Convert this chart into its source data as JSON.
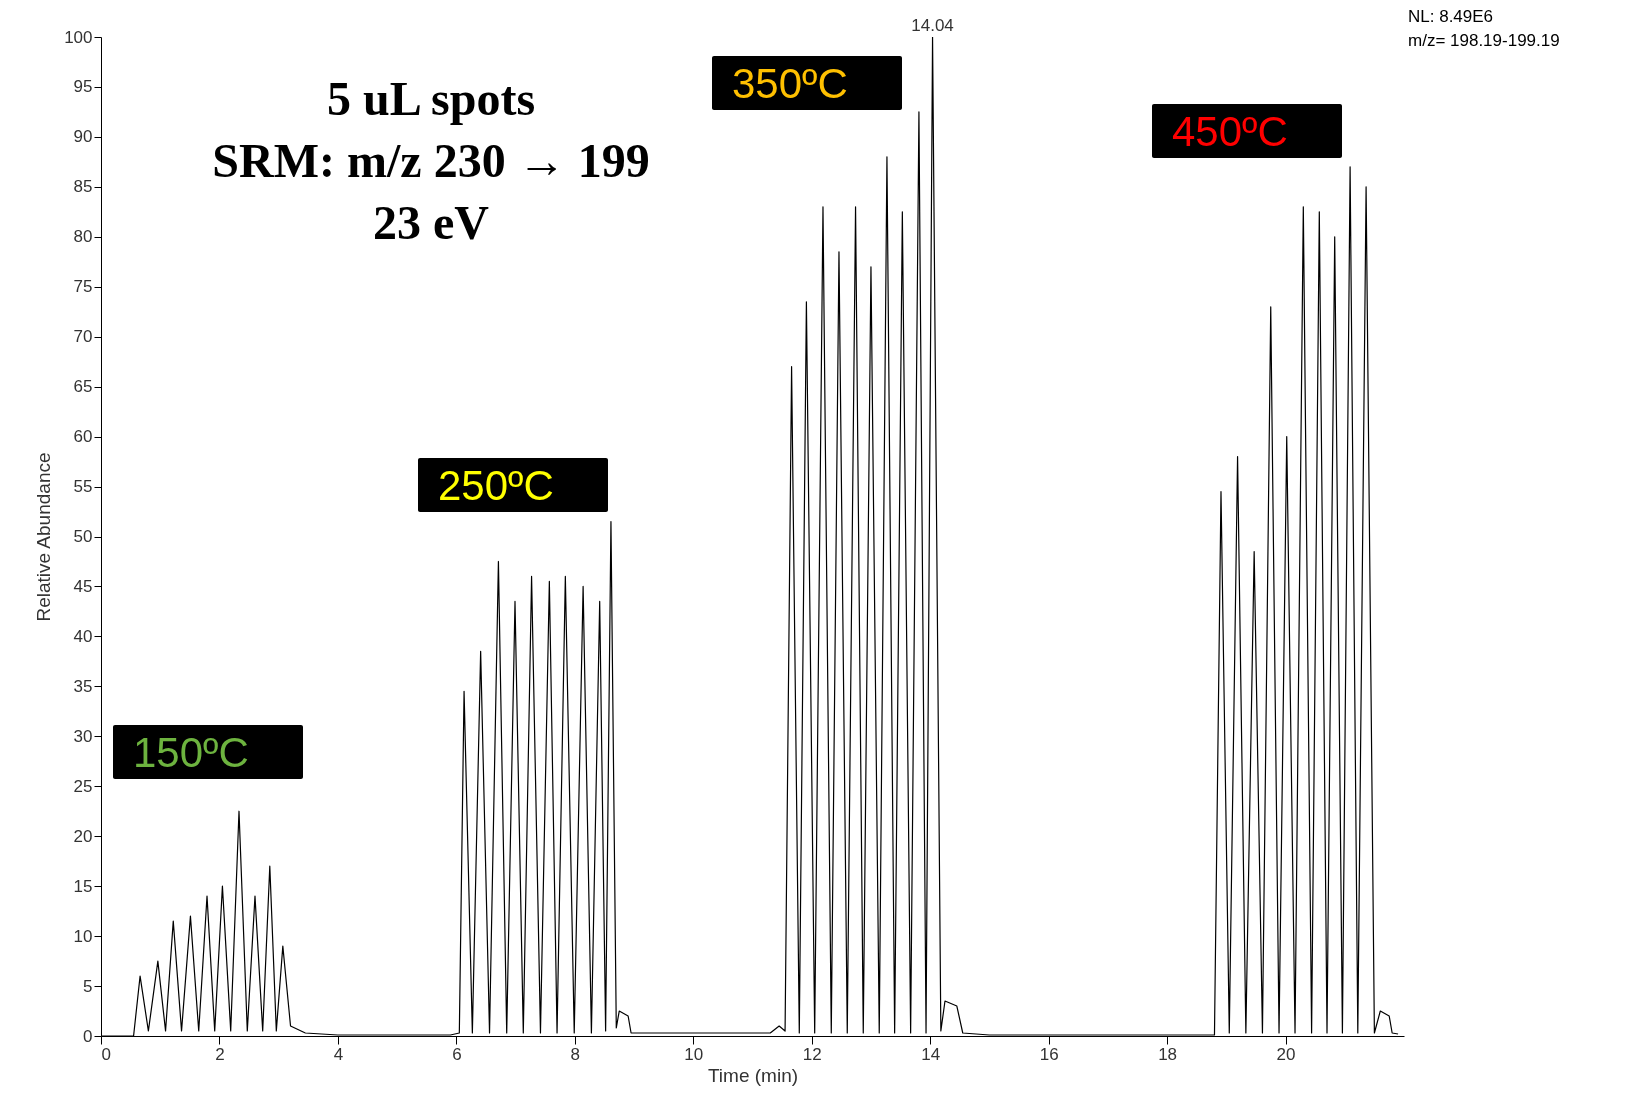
{
  "chart_data": {
    "type": "line",
    "xlabel": "Time (min)",
    "ylabel": "Relative Abundance",
    "xlim": [
      0,
      22
    ],
    "xticks": [
      0,
      2,
      4,
      6,
      8,
      10,
      12,
      14,
      16,
      18,
      20
    ],
    "ylim": [
      0,
      100
    ],
    "yticks": [
      0,
      5,
      10,
      15,
      20,
      25,
      30,
      35,
      40,
      45,
      50,
      55,
      60,
      65,
      70,
      75,
      80,
      85,
      90,
      95,
      100
    ],
    "grid": false,
    "marker": "none",
    "line_style": "solid",
    "series": [
      {
        "color": "#000000",
        "x": [
          0,
          0.55,
          0.66,
          0.8,
          0.96,
          1.09,
          1.22,
          1.36,
          1.51,
          1.65,
          1.79,
          1.92,
          2.05,
          2.19,
          2.33,
          2.47,
          2.6,
          2.73,
          2.85,
          2.96,
          3.07,
          3.2,
          3.45,
          4,
          5.9,
          6.05,
          6.13,
          6.27,
          6.41,
          6.56,
          6.71,
          6.85,
          6.99,
          7.13,
          7.27,
          7.42,
          7.57,
          7.7,
          7.84,
          7.99,
          8.14,
          8.28,
          8.42,
          8.52,
          8.61,
          8.7,
          8.75,
          8.9,
          8.95,
          11.3,
          11.45,
          11.55,
          11.66,
          11.79,
          11.91,
          12.05,
          12.19,
          12.33,
          12.46,
          12.6,
          12.74,
          12.87,
          13,
          13.14,
          13.27,
          13.4,
          13.53,
          13.67,
          13.81,
          13.93,
          14.04,
          14.18,
          14.25,
          14.45,
          14.55,
          15,
          18.8,
          18.91,
          19.05,
          19.19,
          19.33,
          19.47,
          19.61,
          19.75,
          19.89,
          20.02,
          20.16,
          20.3,
          20.44,
          20.57,
          20.7,
          20.83,
          20.96,
          21.09,
          21.22,
          21.36,
          21.5,
          21.6,
          21.75,
          21.8,
          21.9
        ],
        "values": [
          0,
          0,
          6,
          0.5,
          7.5,
          0.5,
          11.5,
          0.5,
          12,
          0.5,
          14,
          0.5,
          15,
          0.5,
          22.5,
          0.5,
          14,
          0.5,
          17,
          0.5,
          9,
          1,
          0.3,
          0.1,
          0.1,
          0.3,
          34.5,
          0.3,
          38.5,
          0.3,
          47.5,
          0.3,
          43.5,
          0.3,
          46,
          0.3,
          45.5,
          0.3,
          46,
          0.3,
          45,
          0.3,
          43.5,
          0.5,
          51.5,
          0.8,
          2.5,
          2,
          0.3,
          0.3,
          1,
          0.5,
          67,
          0.3,
          73.5,
          0.3,
          83,
          0.3,
          78.5,
          0.3,
          83,
          0.3,
          77,
          0.3,
          88,
          0.3,
          82.5,
          0.3,
          92.5,
          0.3,
          100,
          0.5,
          3.5,
          3,
          0.3,
          0.1,
          0.1,
          54.5,
          0.3,
          58,
          0.3,
          48.5,
          0.3,
          73,
          0.3,
          60,
          0.3,
          83,
          0.3,
          82.5,
          0.3,
          80,
          0.3,
          87,
          0.3,
          85,
          0.3,
          2.5,
          2,
          0.3,
          0.2
        ]
      }
    ],
    "annotations": [
      "5 uL spots\nSRM: m/z 230 → 199\n23 eV",
      "NL: 8.49E6\nm/z= 198.19-199.19",
      {
        "text": "14.04",
        "x": 14.04,
        "y": 100
      },
      "150ºC",
      "250ºC",
      "350ºC",
      "450ºC"
    ]
  }
}
